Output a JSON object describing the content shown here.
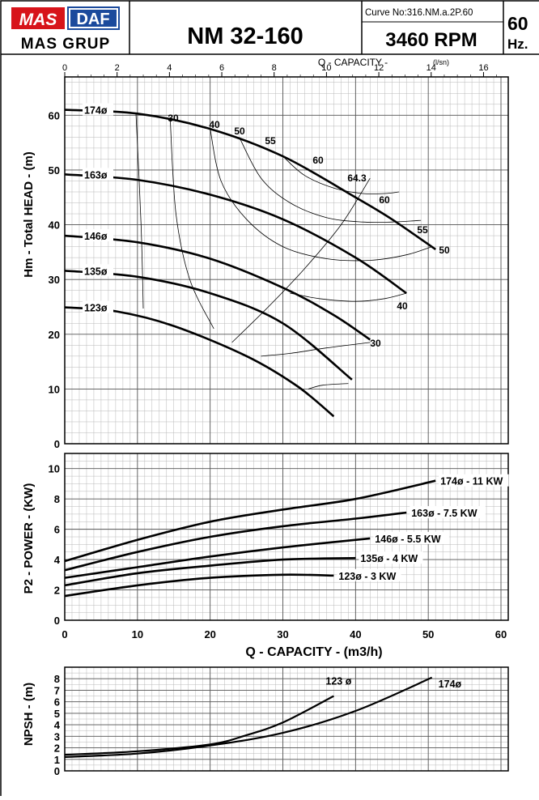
{
  "header": {
    "brand_mas": "MAS",
    "brand_daf": "DAF",
    "brand_group": "MAS GRUP",
    "model": "NM 32-160",
    "curve_no": "Curve No:316.NM.a.2P.60",
    "rpm": "3460 RPM",
    "frequency_value": "60",
    "frequency_unit": "Hz."
  },
  "chart_data": [
    {
      "id": "head",
      "type": "line",
      "ylabel": "Hm - Total HEAD - (m)",
      "xlabel_top": "Q - CAPACITY -",
      "xlabel_top_unit": "(l/sn)",
      "xlim": [
        0,
        61
      ],
      "ylim": [
        0,
        67
      ],
      "x_ticks_m3h": [
        10,
        20,
        30,
        40,
        50,
        60
      ],
      "x_ticks_ls": [
        0,
        2,
        4,
        6,
        8,
        10,
        12,
        14,
        16
      ],
      "y_ticks": [
        0,
        10,
        20,
        30,
        40,
        50,
        60
      ],
      "grid": true,
      "series": [
        {
          "name": "174ø",
          "x": [
            0,
            10,
            20,
            30,
            40,
            45,
            51
          ],
          "y": [
            61,
            60.3,
            57.5,
            52.5,
            45,
            41,
            35.5
          ]
        },
        {
          "name": "163ø",
          "x": [
            0,
            10,
            20,
            30,
            40,
            47
          ],
          "y": [
            49.2,
            48.2,
            45.5,
            41,
            34,
            27.5
          ]
        },
        {
          "name": "146ø",
          "x": [
            0,
            10,
            20,
            30,
            37,
            42
          ],
          "y": [
            38,
            36.8,
            33.8,
            28.5,
            23.5,
            19
          ]
        },
        {
          "name": "135ø",
          "x": [
            0,
            10,
            20,
            30,
            39.5
          ],
          "y": [
            31.6,
            30.5,
            27.5,
            22,
            11.7
          ]
        },
        {
          "name": "123ø",
          "x": [
            0,
            7,
            15,
            25,
            32,
            37
          ],
          "y": [
            24.9,
            24.2,
            21.5,
            16,
            10.5,
            5
          ]
        }
      ],
      "efficiency_curves": [
        {
          "label": "30",
          "x": [
            9.8,
            10.5,
            10.8
          ],
          "y": [
            60.3,
            40,
            24.7
          ]
        },
        {
          "label": "40",
          "x": [
            14.5,
            15.3,
            17.2,
            20.5
          ],
          "y": [
            59.3,
            42,
            30,
            21
          ]
        },
        {
          "label": "50",
          "x": [
            20,
            21.5,
            25,
            30,
            36,
            42,
            47,
            50.5
          ],
          "y": [
            57.5,
            48,
            41,
            36,
            33.8,
            33.5,
            34.5,
            36
          ]
        },
        {
          "label": "55",
          "x": [
            24,
            27,
            31,
            36,
            41,
            45,
            49
          ],
          "y": [
            56,
            48.5,
            44,
            41.3,
            40.5,
            40.5,
            40.8
          ]
        },
        {
          "label": "60",
          "x": [
            30,
            33,
            37,
            41,
            44,
            46
          ],
          "y": [
            52.5,
            49,
            46.7,
            45.7,
            45.7,
            46
          ]
        },
        {
          "label": "40",
          "x": [
            31,
            35,
            40,
            44,
            47
          ],
          "y": [
            27.5,
            26.5,
            26,
            26.5,
            27.5
          ]
        },
        {
          "label": "30",
          "x": [
            27,
            31,
            36,
            42
          ],
          "y": [
            16,
            16.5,
            17.5,
            18.5
          ]
        },
        {
          "label": "",
          "x": [
            33.5,
            35.5,
            39
          ],
          "y": [
            10,
            10.7,
            11
          ]
        }
      ],
      "best_efficiency_line": {
        "label": "64.3",
        "x": [
          23,
          28,
          33,
          38,
          42
        ],
        "y": [
          18.5,
          25,
          32,
          40,
          48.5
        ]
      }
    },
    {
      "id": "power",
      "type": "line",
      "ylabel": "P2 - POWER - (KW)",
      "xlabel": "Q - CAPACITY - (m3/h)",
      "xlim": [
        0,
        61
      ],
      "ylim": [
        0,
        11
      ],
      "x_ticks": [
        0,
        10,
        20,
        30,
        40,
        50,
        60
      ],
      "y_ticks": [
        0,
        2,
        4,
        6,
        8,
        10
      ],
      "grid": true,
      "series": [
        {
          "name": "174ø - 11 KW",
          "x": [
            0,
            10,
            20,
            30,
            40,
            51
          ],
          "y": [
            3.9,
            5.3,
            6.5,
            7.3,
            8,
            9.2
          ]
        },
        {
          "name": "163ø - 7.5 KW",
          "x": [
            0,
            10,
            20,
            30,
            40,
            47
          ],
          "y": [
            3.3,
            4.5,
            5.5,
            6.2,
            6.7,
            7.1
          ]
        },
        {
          "name": "146ø - 5.5 KW",
          "x": [
            0,
            10,
            20,
            30,
            42
          ],
          "y": [
            2.8,
            3.5,
            4.2,
            4.8,
            5.4
          ]
        },
        {
          "name": "135ø - 4 KW",
          "x": [
            0,
            10,
            20,
            30,
            40
          ],
          "y": [
            2.3,
            3.1,
            3.6,
            4,
            4.1
          ]
        },
        {
          "name": "123ø - 3 KW",
          "x": [
            0,
            10,
            20,
            30,
            37
          ],
          "y": [
            1.6,
            2.3,
            2.8,
            3,
            2.95
          ]
        }
      ]
    },
    {
      "id": "npsh",
      "type": "line",
      "ylabel": "NPSH - (m)",
      "xlim": [
        0,
        61
      ],
      "ylim": [
        0,
        9
      ],
      "y_ticks": [
        0,
        1,
        2,
        3,
        4,
        5,
        6,
        7,
        8
      ],
      "grid": true,
      "series": [
        {
          "name": "174ø",
          "x": [
            0,
            10,
            20,
            30,
            40,
            50.5
          ],
          "y": [
            1.2,
            1.5,
            2.2,
            3.3,
            5.2,
            8.1
          ]
        },
        {
          "name": "123 ø",
          "x": [
            0,
            10,
            20,
            25,
            30,
            37
          ],
          "y": [
            1.4,
            1.7,
            2.3,
            3.1,
            4.2,
            6.5
          ]
        }
      ]
    }
  ]
}
